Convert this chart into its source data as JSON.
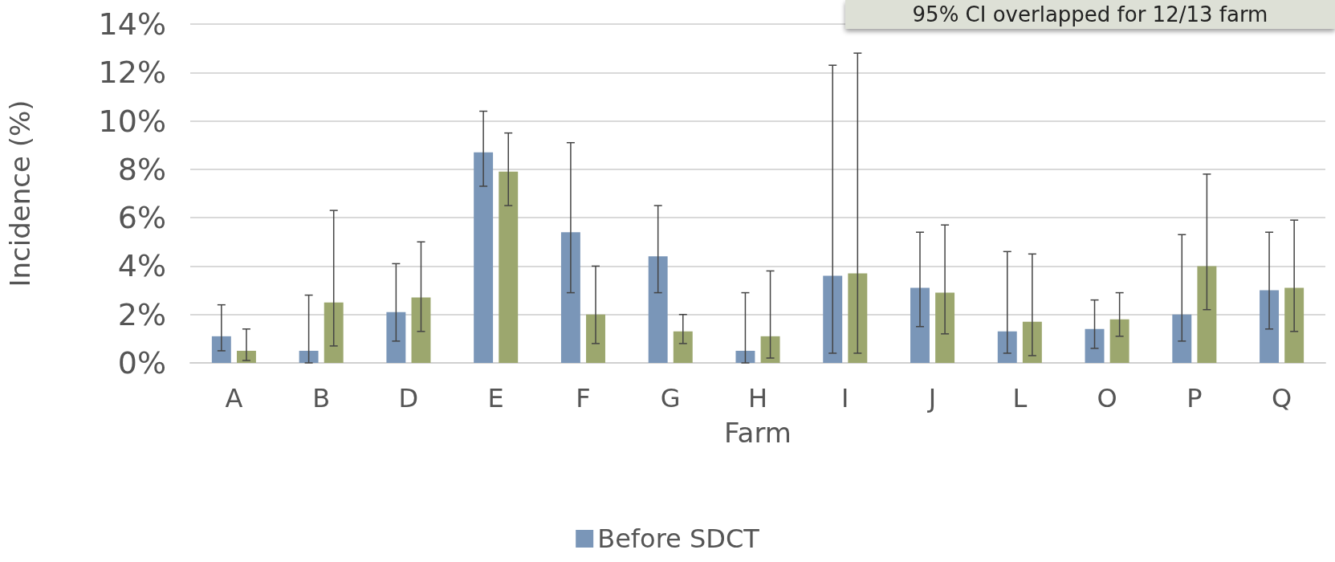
{
  "chart_data": {
    "type": "bar",
    "xlabel": "Farm",
    "ylabel": "Incidence (%)",
    "annotations": [
      "95% CI overlapped for 12/13 farm"
    ],
    "categories": [
      "A",
      "B",
      "D",
      "E",
      "F",
      "G",
      "H",
      "I",
      "J",
      "L",
      "O",
      "P",
      "Q"
    ],
    "series": [
      {
        "name": "Before SDCT",
        "color": "#7a96b8",
        "values": [
          1.1,
          0.5,
          2.1,
          8.7,
          5.4,
          4.4,
          0.5,
          3.6,
          3.1,
          1.3,
          1.4,
          2.0,
          3.0
        ],
        "errors": [
          [
            0.5,
            2.4
          ],
          [
            0,
            2.8
          ],
          [
            0.9,
            4.1
          ],
          [
            7.3,
            10.4
          ],
          [
            2.9,
            9.1
          ],
          [
            2.9,
            6.5
          ],
          [
            0,
            2.9
          ],
          [
            0.4,
            12.3
          ],
          [
            1.5,
            5.4
          ],
          [
            0.4,
            4.6
          ],
          [
            0.6,
            2.6
          ],
          [
            0.9,
            5.3
          ],
          [
            1.4,
            5.4
          ]
        ]
      },
      {
        "color": "#9ca76e",
        "values": [
          0.5,
          2.5,
          2.7,
          7.9,
          2.0,
          1.3,
          1.1,
          3.7,
          2.9,
          1.7,
          1.8,
          4.0,
          3.1
        ],
        "errors": [
          [
            0.1,
            1.4
          ],
          [
            0.7,
            6.3
          ],
          [
            1.3,
            5.0
          ],
          [
            6.5,
            9.5
          ],
          [
            0.8,
            4.0
          ],
          [
            0.8,
            2.0
          ],
          [
            0.2,
            3.8
          ],
          [
            0.4,
            12.8
          ],
          [
            1.2,
            5.7
          ],
          [
            0.3,
            4.5
          ],
          [
            1.1,
            2.9
          ],
          [
            2.2,
            7.8
          ],
          [
            1.3,
            5.9
          ]
        ]
      }
    ],
    "ylim": [
      0,
      14
    ],
    "yticks": [
      {
        "value": 0,
        "label": "0%"
      },
      {
        "value": 2,
        "label": "2%"
      },
      {
        "value": 4,
        "label": "4%"
      },
      {
        "value": 6,
        "label": "6%"
      },
      {
        "value": 8,
        "label": "8%"
      },
      {
        "value": 10,
        "label": "10%"
      },
      {
        "value": 12,
        "label": "12%"
      },
      {
        "value": 14,
        "label": "14%"
      }
    ],
    "grid": "y",
    "legend": "bottom"
  }
}
